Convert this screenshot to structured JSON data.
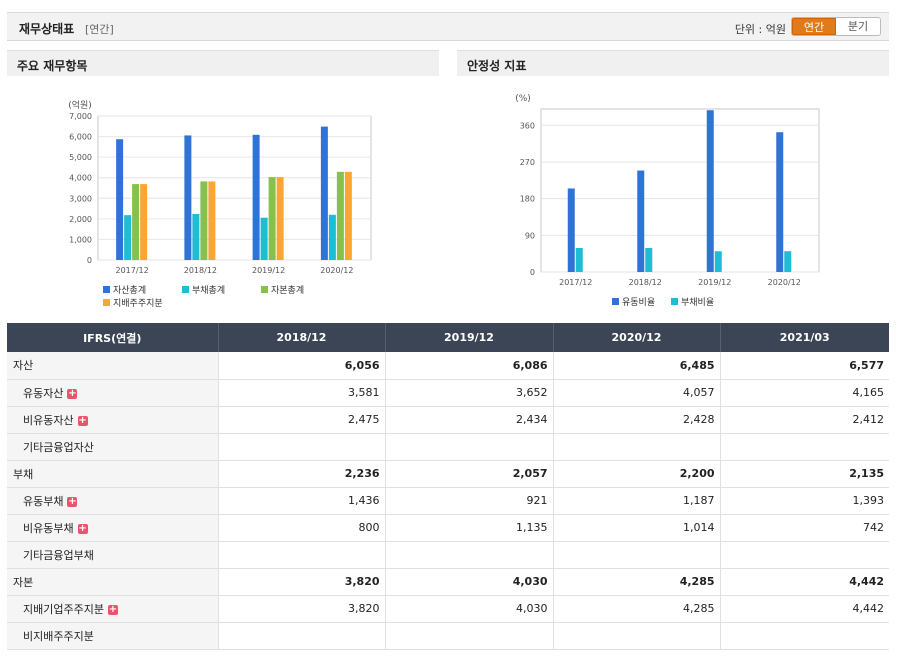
{
  "header": {
    "title": "재무상태표",
    "subtitle": "[연간]",
    "unit_label": "단위 : 억원",
    "toggle_annual": "연간",
    "toggle_quarter": "분기"
  },
  "panels": {
    "left_title": "주요 재무항목",
    "right_title": "안정성 지표"
  },
  "colors": {
    "asset_total": "#3073d6",
    "debt_total": "#1fbcd6",
    "equity_total": "#86c04f",
    "controlling_equity": "#f9a635",
    "current_ratio": "#3073d6",
    "debt_ratio": "#1fbcd6"
  },
  "chart_data": [
    {
      "type": "bar",
      "title": "주요 재무항목",
      "ylabel": "(억원)",
      "categories": [
        "2017/12",
        "2018/12",
        "2019/12",
        "2020/12"
      ],
      "ylim": [
        0,
        7000
      ],
      "yticks": [
        "0",
        "1,000",
        "2,000",
        "3,000",
        "4,000",
        "5,000",
        "6,000",
        "7,000"
      ],
      "ytick_values": [
        0,
        1000,
        2000,
        3000,
        4000,
        5000,
        6000,
        7000
      ],
      "series": [
        {
          "name": "자산총계",
          "values": [
            5870,
            6056,
            6086,
            6485
          ]
        },
        {
          "name": "부채총계",
          "values": [
            2180,
            2236,
            2057,
            2200
          ]
        },
        {
          "name": "자본총계",
          "values": [
            3690,
            3820,
            4030,
            4285
          ]
        },
        {
          "name": "지배주주지분",
          "values": [
            3690,
            3820,
            4030,
            4285
          ]
        }
      ],
      "legend": "bottom"
    },
    {
      "type": "bar",
      "title": "안정성 지표",
      "ylabel": "(%)",
      "categories": [
        "2017/12",
        "2018/12",
        "2019/12",
        "2020/12"
      ],
      "ylim": [
        0,
        400
      ],
      "yticks": [
        "0",
        "90",
        "180",
        "270",
        "360"
      ],
      "ytick_values": [
        0,
        90,
        180,
        270,
        360
      ],
      "series": [
        {
          "name": "유동비율",
          "values": [
            205,
            249,
            397,
            343
          ]
        },
        {
          "name": "부채비율",
          "values": [
            59,
            59,
            51,
            51
          ]
        }
      ],
      "legend": "bottom"
    }
  ],
  "table": {
    "header": [
      "IFRS(연결)",
      "2018/12",
      "2019/12",
      "2020/12",
      "2021/03"
    ],
    "rows": [
      {
        "label": "자산",
        "level": 0,
        "expand": false,
        "values": [
          "6,056",
          "6,086",
          "6,485",
          "6,577"
        ]
      },
      {
        "label": "유동자산",
        "level": 1,
        "expand": true,
        "values": [
          "3,581",
          "3,652",
          "4,057",
          "4,165"
        ]
      },
      {
        "label": "비유동자산",
        "level": 1,
        "expand": true,
        "values": [
          "2,475",
          "2,434",
          "2,428",
          "2,412"
        ]
      },
      {
        "label": "기타금융업자산",
        "level": 1,
        "expand": false,
        "values": [
          "",
          "",
          "",
          ""
        ]
      },
      {
        "label": "부채",
        "level": 0,
        "expand": false,
        "values": [
          "2,236",
          "2,057",
          "2,200",
          "2,135"
        ]
      },
      {
        "label": "유동부채",
        "level": 1,
        "expand": true,
        "values": [
          "1,436",
          "921",
          "1,187",
          "1,393"
        ]
      },
      {
        "label": "비유동부채",
        "level": 1,
        "expand": true,
        "values": [
          "800",
          "1,135",
          "1,014",
          "742"
        ]
      },
      {
        "label": "기타금융업부채",
        "level": 1,
        "expand": false,
        "values": [
          "",
          "",
          "",
          ""
        ]
      },
      {
        "label": "자본",
        "level": 0,
        "expand": false,
        "values": [
          "3,820",
          "4,030",
          "4,285",
          "4,442"
        ]
      },
      {
        "label": "지배기업주주지분",
        "level": 1,
        "expand": true,
        "values": [
          "3,820",
          "4,030",
          "4,285",
          "4,442"
        ]
      },
      {
        "label": "비지배주주지분",
        "level": 1,
        "expand": false,
        "values": [
          "",
          "",
          "",
          ""
        ]
      }
    ],
    "expand_symbol": "+"
  }
}
